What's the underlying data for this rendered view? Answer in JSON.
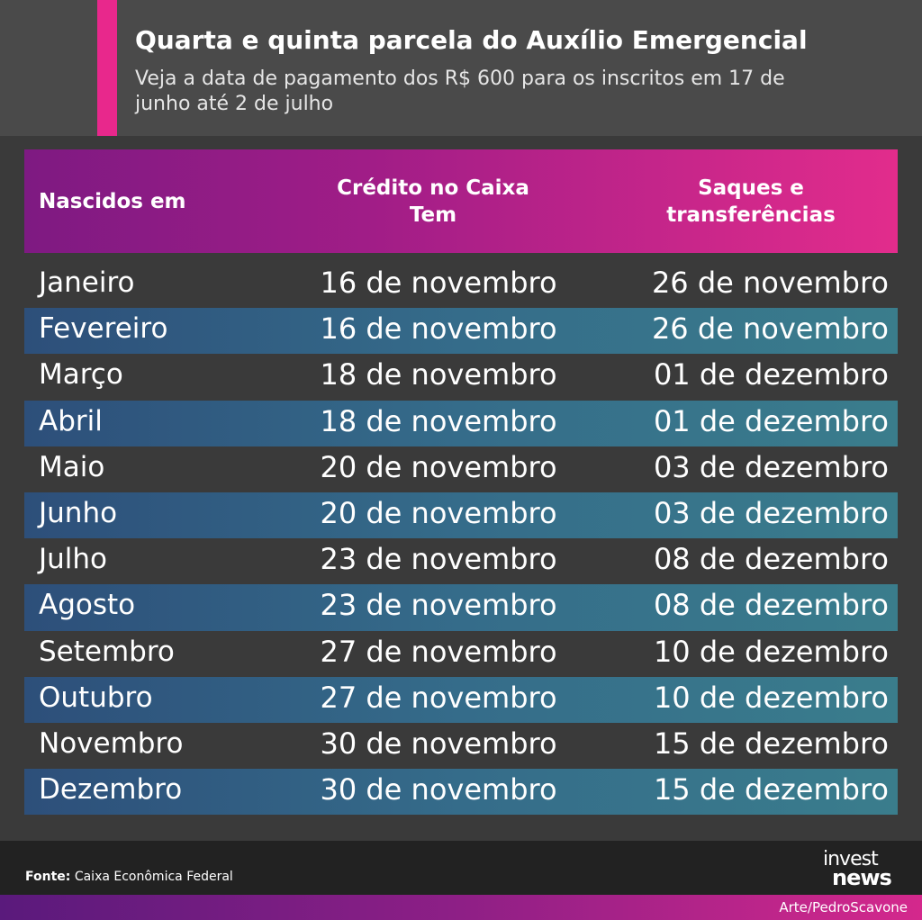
{
  "header": {
    "title": "Quarta e quinta parcela do Auxílio Emergencial",
    "subtitle": "Veja a data de pagamento dos R$ 600 para os inscritos em 17 de junho até 2 de julho"
  },
  "table": {
    "columns": [
      "Nascidos em",
      "Crédito no Caixa Tem",
      "Saques e transferências"
    ],
    "rows": [
      {
        "month": "Janeiro",
        "credit": "16 de novembro",
        "saque": "26 de novembro"
      },
      {
        "month": "Fevereiro",
        "credit": "16 de novembro",
        "saque": "26 de novembro"
      },
      {
        "month": "Março",
        "credit": "18 de novembro",
        "saque": "01 de dezembro"
      },
      {
        "month": "Abril",
        "credit": "18 de novembro",
        "saque": "01 de dezembro"
      },
      {
        "month": "Maio",
        "credit": "20 de novembro",
        "saque": "03 de dezembro"
      },
      {
        "month": "Junho",
        "credit": "20 de novembro",
        "saque": "03 de dezembro"
      },
      {
        "month": "Julho",
        "credit": "23 de novembro",
        "saque": "08 de dezembro"
      },
      {
        "month": "Agosto",
        "credit": "23 de novembro",
        "saque": "08 de dezembro"
      },
      {
        "month": "Setembro",
        "credit": "27 de novembro",
        "saque": "10 de dezembro"
      },
      {
        "month": "Outubro",
        "credit": "27 de novembro",
        "saque": "10 de dezembro"
      },
      {
        "month": "Novembro",
        "credit": "30 de novembro",
        "saque": "15 de dezembro"
      },
      {
        "month": "Dezembro",
        "credit": "30 de novembro",
        "saque": "15 de dezembro"
      }
    ]
  },
  "footer": {
    "source_label": "Fonte:",
    "source_value": "Caixa Econômica Federal",
    "logo_top": "invest",
    "logo_bottom": "news",
    "credit": "Arte/PedroScavone"
  },
  "colors": {
    "accent": "#e8288c",
    "header_bg": "#4a4a4a",
    "body_bg": "#3a3a3a",
    "row_highlight": "#356c8a"
  }
}
